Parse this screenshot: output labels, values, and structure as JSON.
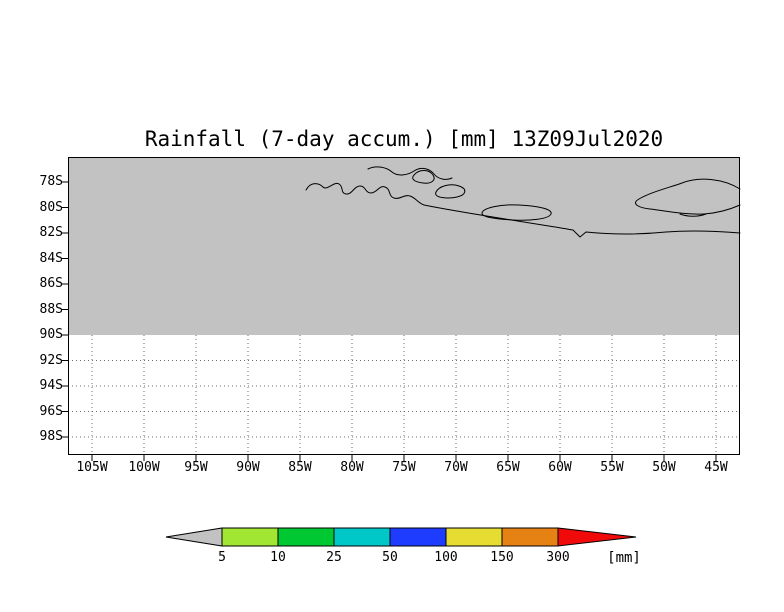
{
  "title": "Rainfall (7-day accum.) [mm] 13Z09Jul2020",
  "chart_data": {
    "type": "contour_map",
    "title": "Rainfall (7-day accum.) [mm] 13Z09Jul2020",
    "variable": "Rainfall (7-day accumulation)",
    "units": "mm",
    "valid_time_label": "13Z09Jul2020",
    "x_tick_labels": [
      "105W",
      "100W",
      "95W",
      "90W",
      "85W",
      "80W",
      "75W",
      "70W",
      "65W",
      "60W",
      "55W",
      "50W",
      "45W"
    ],
    "y_tick_labels": [
      "78S",
      "80S",
      "82S",
      "84S",
      "86S",
      "88S",
      "90S",
      "92S",
      "94S",
      "96S",
      "98S"
    ],
    "contour_levels": [
      5,
      10,
      25,
      50,
      100,
      150,
      300
    ],
    "level_colors": [
      "#c2c2c2",
      "#a0e632",
      "#00c832",
      "#00c8c8",
      "#1e3cff",
      "#e6dc32",
      "#e68214",
      "#f00a0a"
    ],
    "field_summary": "Entire mapped band north of 90S shaded in lowest (< 5 mm) gray category with black coastline contours; area south of 90S blank with dotted gridlines",
    "grid": "dotted",
    "legend_position": "bottom"
  },
  "colorbar": {
    "labels": [
      "5",
      "10",
      "25",
      "50",
      "100",
      "150",
      "300"
    ],
    "unit_label": "[mm]"
  }
}
